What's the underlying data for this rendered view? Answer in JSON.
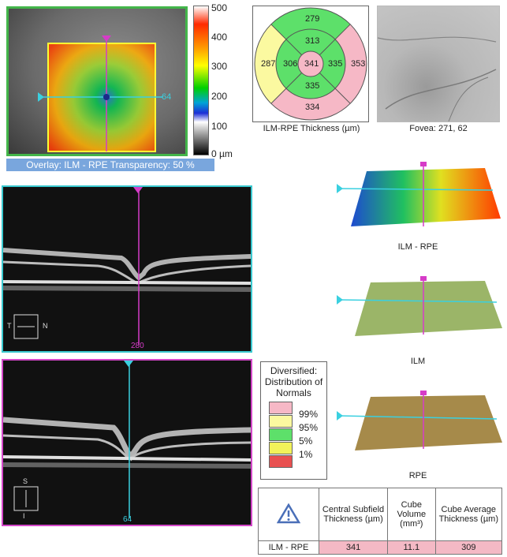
{
  "overlay": {
    "caption": "Overlay: ILM - RPE  Transparency: 50 %",
    "h_scan_index": "64",
    "colorbar_ticks": [
      "500",
      "400",
      "300",
      "200",
      "100",
      "0 µm"
    ]
  },
  "sector_map": {
    "title": "ILM-RPE Thickness (µm)",
    "center": "341",
    "inner": {
      "top": "313",
      "left": "306",
      "right": "335",
      "bottom": "335"
    },
    "outer": {
      "top": "279",
      "left": "287",
      "right": "353",
      "bottom": "334"
    },
    "colors": {
      "green": "#5de06a",
      "yellow": "#fbf9a0",
      "pink": "#f6b8c6"
    }
  },
  "fovea": {
    "caption": "Fovea: 271, 62"
  },
  "bscan_horizontal": {
    "index": "280",
    "dir_left": "T",
    "dir_right": "N"
  },
  "bscan_vertical": {
    "index": "64",
    "dir_top": "S",
    "dir_bottom": "I"
  },
  "surfaces": {
    "s1": "ILM - RPE",
    "s2": "ILM",
    "s3": "RPE"
  },
  "legend": {
    "title": "Diversified: Distribution of Normals",
    "items": [
      {
        "label": "99%",
        "color": "#f6b8c6"
      },
      {
        "label": "95%",
        "color": "#fbf9a0"
      },
      {
        "label": "5%",
        "color": "#5de06a"
      },
      {
        "label": "1%",
        "color": "#f2f25a"
      },
      {
        "label": "",
        "color": "#e85050"
      }
    ]
  },
  "summary": {
    "headers": [
      "Central Subfield Thickness (µm)",
      "Cube Volume (mm³)",
      "Cube Average Thickness (µm)"
    ],
    "row_label": "ILM - RPE",
    "values": [
      "341",
      "11.1",
      "309"
    ]
  }
}
